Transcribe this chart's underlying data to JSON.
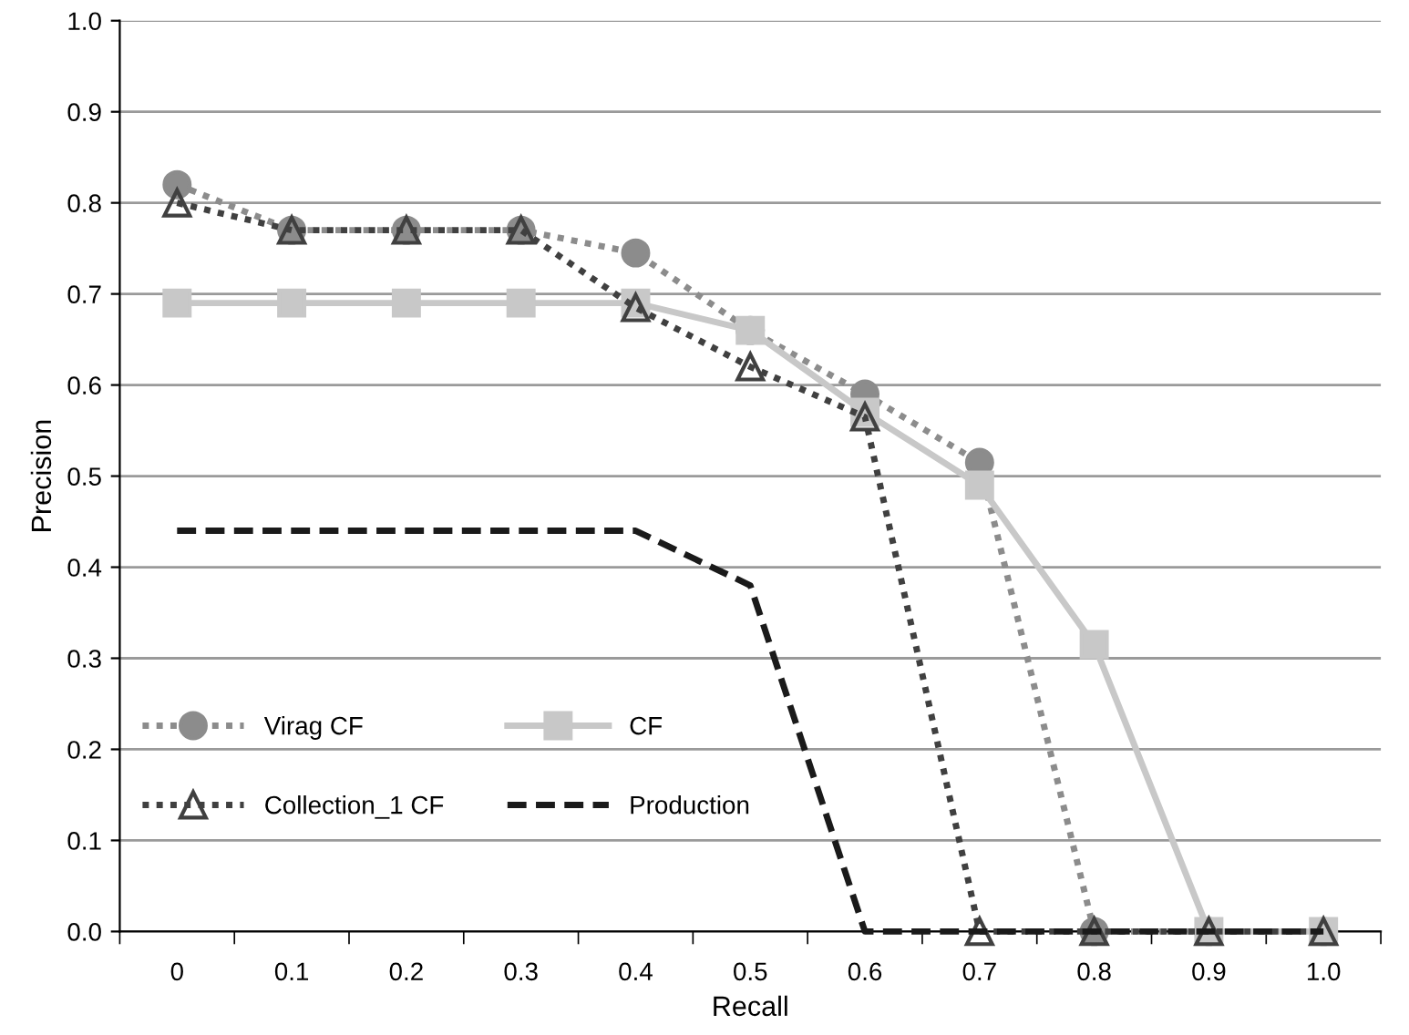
{
  "chart_data": {
    "type": "line",
    "xlabel": "Recall",
    "ylabel": "Precision",
    "categories": [
      "0",
      "0.1",
      "0.2",
      "0.3",
      "0.4",
      "0.5",
      "0.6",
      "0.7",
      "0.8",
      "0.9",
      "1.0"
    ],
    "series": [
      {
        "name": "Virag CF",
        "color": "#8c8c8c",
        "marker": "circle",
        "line_style": "dotted",
        "values": [
          0.82,
          0.77,
          0.77,
          0.77,
          0.745,
          0.66,
          0.59,
          0.515,
          0,
          0,
          0
        ]
      },
      {
        "name": "CF",
        "color": "#c8c8c8",
        "marker": "square",
        "line_style": "solid",
        "values": [
          0.69,
          0.69,
          0.69,
          0.69,
          0.69,
          0.66,
          0.57,
          0.49,
          0.315,
          0,
          0
        ]
      },
      {
        "name": "Collection_1 CF",
        "color": "#404040",
        "marker": "triangle",
        "line_style": "dotted",
        "values": [
          0.8,
          0.77,
          0.77,
          0.77,
          0.685,
          0.62,
          0.565,
          0,
          0,
          0,
          0
        ]
      },
      {
        "name": "Production",
        "color": "#1a1a1a",
        "marker": "none",
        "line_style": "dashed",
        "values": [
          0.44,
          0.44,
          0.44,
          0.44,
          0.44,
          0.38,
          0,
          0,
          0,
          0,
          0
        ]
      }
    ],
    "ylim": [
      0,
      1.0
    ],
    "yticks": [
      {
        "value": 0,
        "label": "0.0"
      },
      0.1,
      0.2,
      0.3,
      0.4,
      0.5,
      0.6,
      0.7,
      0.8,
      0.9,
      {
        "value": 1.0,
        "label": "1.0"
      }
    ],
    "grid": "y",
    "legend": "center left"
  }
}
